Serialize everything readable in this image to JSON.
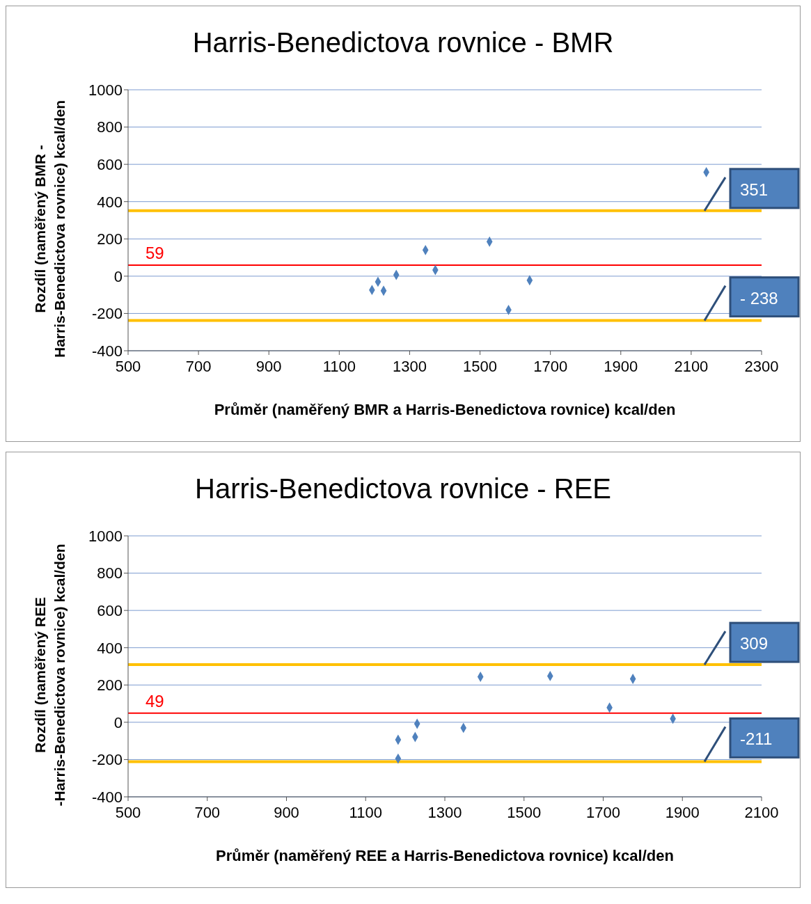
{
  "chart_data": [
    {
      "type": "scatter",
      "title": "Harris-Benedictova rovnice - BMR",
      "xlabel": "Průměr (naměřený BMR a Harris-Benedictova rovnice) kcal/den",
      "ylabel": "Rozdíl (naměřený BMR - Harris-Benedictova rovnice) kcal/den",
      "x": [
        2143,
        1345,
        1527,
        1373,
        1262,
        1210,
        1193,
        1226,
        1581,
        1641
      ],
      "series": [
        {
          "color": "#4f81bd",
          "values": [
            558,
            140,
            185,
            33,
            7,
            -30,
            -74,
            -78,
            -181,
            -22
          ]
        }
      ],
      "marker": "diamond",
      "xlim": [
        500,
        2300
      ],
      "xticks": [
        500,
        700,
        900,
        1100,
        1300,
        1500,
        1700,
        1900,
        2100,
        2300
      ],
      "ylim": [
        -400,
        1000
      ],
      "yticks": [
        -400,
        -200,
        0,
        200,
        400,
        600,
        800,
        1000
      ],
      "grid": "y",
      "ref_lines": [
        {
          "axis": "y",
          "value": 59,
          "label": "59",
          "color": "#ff0000"
        },
        {
          "axis": "y",
          "value": 351,
          "label": "351",
          "color": "#ffc000"
        },
        {
          "axis": "y",
          "value": -238,
          "label": "- 238",
          "color": "#ffc000"
        }
      ]
    },
    {
      "type": "scatter",
      "title": "Harris-Benedictova rovnice - REE",
      "xlabel": "Průměr (naměřený REE a Harris-Benedictova  rovnice) kcal/den",
      "ylabel": "Rozdíl (naměřený REE -Harris-Benedictova rovnice) kcal/den",
      "x": [
        1390,
        1566,
        1775,
        1716,
        1876,
        1230,
        1347,
        1225,
        1182,
        1182
      ],
      "series": [
        {
          "color": "#4f81bd",
          "values": [
            244,
            248,
            233,
            79,
            19,
            -8,
            -30,
            -79,
            -94,
            -195
          ]
        }
      ],
      "marker": "diamond",
      "xlim": [
        500,
        2100
      ],
      "xticks": [
        500,
        700,
        900,
        1100,
        1300,
        1500,
        1700,
        1900,
        2100
      ],
      "ylim": [
        -400,
        1000
      ],
      "yticks": [
        -400,
        -200,
        0,
        200,
        400,
        600,
        800,
        1000
      ],
      "grid": "y",
      "ref_lines": [
        {
          "axis": "y",
          "value": 49,
          "label": "49",
          "color": "#ff0000"
        },
        {
          "axis": "y",
          "value": 309,
          "label": "309",
          "color": "#ffc000"
        },
        {
          "axis": "y",
          "value": -211,
          "label": "-211",
          "color": "#ffc000"
        }
      ]
    }
  ]
}
